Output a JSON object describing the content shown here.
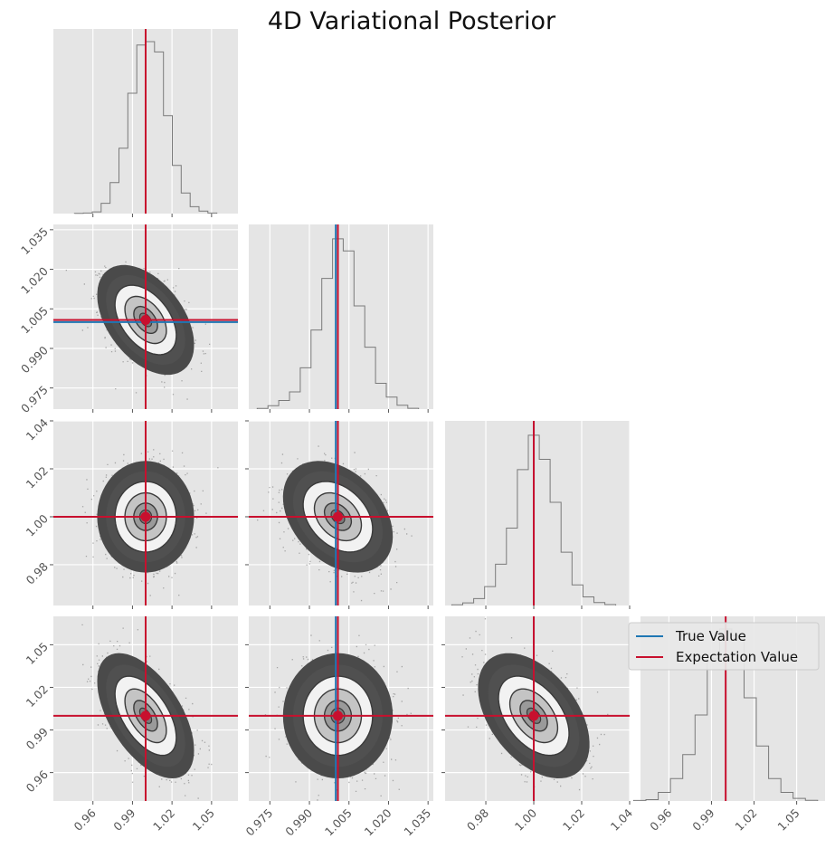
{
  "chart_data": {
    "type": "corner",
    "title": "4D Variational Posterior",
    "parameters": [
      {
        "range": [
          0.93,
          1.07
        ],
        "ticks": [
          0.96,
          0.99,
          1.02,
          1.05
        ],
        "tick_labels": [
          "0.96",
          "0.99",
          "1.02",
          "1.05"
        ],
        "true_value": null,
        "expectation": 1.0
      },
      {
        "range": [
          0.967,
          1.037
        ],
        "ticks": [
          0.975,
          0.99,
          1.005,
          1.02,
          1.035
        ],
        "tick_labels": [
          "0.975",
          "0.990",
          "1.005",
          "1.020",
          "1.035"
        ],
        "true_value": 1.0,
        "expectation": 1.0008
      },
      {
        "range": [
          0.963,
          1.04
        ],
        "ticks": [
          0.98,
          1.0,
          1.02,
          1.04
        ],
        "tick_labels": [
          "0.98",
          "1.00",
          "1.02",
          "1.04"
        ],
        "true_value": 1.0,
        "expectation": 1.0
      },
      {
        "range": [
          0.94,
          1.07
        ],
        "ticks": [
          0.96,
          0.99,
          1.02,
          1.05
        ],
        "tick_labels": [
          "0.96",
          "0.99",
          "1.02",
          "1.05"
        ],
        "true_value": null,
        "expectation": 1.0
      }
    ],
    "correlations": {
      "1-0": -0.45,
      "2-0": 0.0,
      "2-1": -0.35,
      "3-0": -0.55,
      "3-1": 0.0,
      "3-2": -0.45
    },
    "sigmas": [
      0.015,
      0.0085,
      0.0095,
      0.018
    ],
    "histograms": [
      [
        0.001,
        0.003,
        0.01,
        0.06,
        0.18,
        0.38,
        0.7,
        0.98,
        1.0,
        0.94,
        0.57,
        0.28,
        0.12,
        0.04,
        0.015,
        0.003
      ],
      [
        0.004,
        0.02,
        0.05,
        0.1,
        0.24,
        0.46,
        0.76,
        0.99,
        0.92,
        0.6,
        0.36,
        0.15,
        0.07,
        0.022,
        0.005
      ],
      [
        0.004,
        0.015,
        0.04,
        0.11,
        0.24,
        0.45,
        0.79,
        0.99,
        0.85,
        0.6,
        0.31,
        0.12,
        0.05,
        0.017,
        0.005
      ],
      [
        0.003,
        0.008,
        0.05,
        0.13,
        0.27,
        0.5,
        0.83,
        1.0,
        0.96,
        0.6,
        0.32,
        0.13,
        0.05,
        0.015,
        0.004
      ]
    ],
    "legend": {
      "entries": [
        {
          "label": "True Value",
          "color": "#1f77b4"
        },
        {
          "label": "Expectation Value",
          "color": "#c8102e"
        }
      ],
      "placement": "top-right"
    },
    "grid": true
  },
  "colors": {
    "panel_background": "#e5e5e5",
    "grid": "#ffffff",
    "true_value": "#1f77b4",
    "expectation": "#c8102e",
    "density": "#555555",
    "histogram": "#7a7a7a",
    "tick_text": "#555555"
  }
}
